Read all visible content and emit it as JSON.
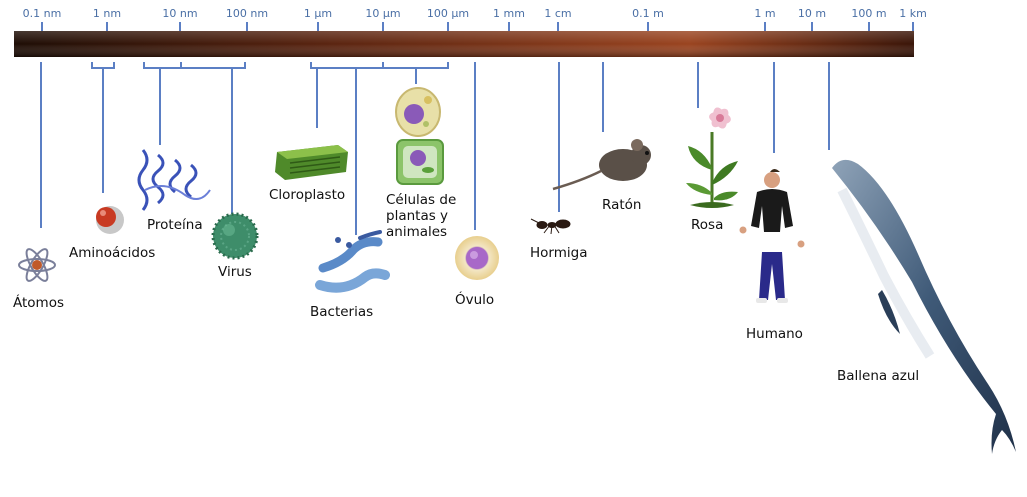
{
  "scale": {
    "ticks": [
      "0.1 nm",
      "1 nm",
      "10 nm",
      "100 nm",
      "1 µm",
      "10 µm",
      "100 µm",
      "1 mm",
      "1 cm",
      "0.1 m",
      "1 m",
      "10 m",
      "100 m",
      "1 km"
    ]
  },
  "items": {
    "atomos": "Átomos",
    "aminoacidos": "Aminoácidos",
    "proteina": "Proteína",
    "virus": "Virus",
    "cloroplasto": "Cloroplasto",
    "bacterias": "Bacterias",
    "celulas_1": "Células de",
    "celulas_2": "plantas y",
    "celulas_3": "animales",
    "ovulo": "Óvulo",
    "hormiga": "Hormiga",
    "raton": "Ratón",
    "rosa": "Rosa",
    "humano": "Humano",
    "ballena": "Ballena azul"
  },
  "colors": {
    "bar_dark": "#2a1208",
    "bar_mid": "#8a3a1a",
    "connector": "#5b7fc4",
    "tick_text": "#4a6fa5"
  }
}
